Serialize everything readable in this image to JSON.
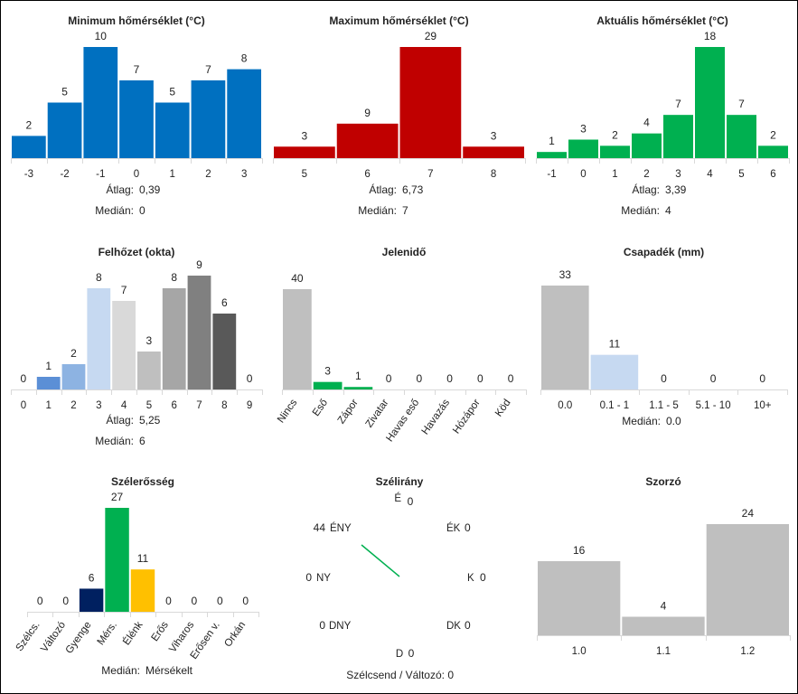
{
  "chart_data": [
    {
      "id": "min",
      "type": "bar",
      "title": "Minimum hőmérséklet (°C)",
      "categories": [
        "-3",
        "-2",
        "-1",
        "0",
        "1",
        "2",
        "3"
      ],
      "values": [
        2,
        5,
        10,
        7,
        5,
        7,
        8
      ],
      "colors": [
        "#0070c0",
        "#0070c0",
        "#0070c0",
        "#0070c0",
        "#0070c0",
        "#0070c0",
        "#0070c0"
      ],
      "stats": [
        {
          "label": "Átlag:",
          "value": "0,39"
        },
        {
          "label": "Medián:",
          "value": "0"
        }
      ]
    },
    {
      "id": "max",
      "type": "bar",
      "title": "Maximum hőmérséklet (°C)",
      "categories": [
        "5",
        "6",
        "7",
        "8"
      ],
      "values": [
        3,
        9,
        29,
        3
      ],
      "colors": [
        "#c00000",
        "#c00000",
        "#c00000",
        "#c00000"
      ],
      "stats": [
        {
          "label": "Átlag:",
          "value": "6,73"
        },
        {
          "label": "Medián:",
          "value": "7"
        }
      ]
    },
    {
      "id": "akt",
      "type": "bar",
      "title": "Aktuális hőmérséklet (°C)",
      "categories": [
        "-1",
        "0",
        "1",
        "2",
        "3",
        "4",
        "5",
        "6"
      ],
      "values": [
        1,
        3,
        2,
        4,
        7,
        18,
        7,
        2
      ],
      "colors": [
        "#00b050",
        "#00b050",
        "#00b050",
        "#00b050",
        "#00b050",
        "#00b050",
        "#00b050",
        "#00b050"
      ],
      "stats": [
        {
          "label": "Átlag:",
          "value": "3,39"
        },
        {
          "label": "Medián:",
          "value": "4"
        }
      ]
    },
    {
      "id": "felho",
      "type": "bar",
      "title": "Felhőzet (okta)",
      "categories": [
        "0",
        "1",
        "2",
        "3",
        "4",
        "5",
        "6",
        "7",
        "8",
        "9"
      ],
      "values": [
        0,
        1,
        2,
        8,
        7,
        3,
        8,
        9,
        6,
        0
      ],
      "colors": [
        "#cccccc",
        "#5b8fd6",
        "#8db3e2",
        "#c6d9f1",
        "#d9d9d9",
        "#bfbfbf",
        "#a6a6a6",
        "#808080",
        "#595959",
        "#404040"
      ],
      "stats": [
        {
          "label": "Átlag:",
          "value": "5,25"
        },
        {
          "label": "Medián:",
          "value": "6"
        }
      ]
    },
    {
      "id": "jelen",
      "type": "bar",
      "title": "Jelenidő",
      "categories": [
        "Nincs",
        "Eső",
        "Zápor",
        "Zivatar",
        "Havas eső",
        "Havazás",
        "Hózápor",
        "Köd"
      ],
      "values": [
        40,
        3,
        1,
        0,
        0,
        0,
        0,
        0
      ],
      "colors": [
        "#bfbfbf",
        "#00b050",
        "#00b050",
        "#7f7f7f",
        "#7f7f7f",
        "#7f7f7f",
        "#7f7f7f",
        "#7f7f7f"
      ],
      "stats": []
    },
    {
      "id": "csap",
      "type": "bar",
      "title": "Csapadék (mm)",
      "categories": [
        "0.0",
        "0.1 - 1",
        "1.1 - 5",
        "5.1 - 10",
        "10+"
      ],
      "values": [
        33,
        11,
        0,
        0,
        0
      ],
      "colors": [
        "#bfbfbf",
        "#c6d9f1",
        "#8db3e2",
        "#5b8fd6",
        "#0070c0"
      ],
      "stats": [
        {
          "label": "Medián:",
          "value": "0.0"
        }
      ]
    },
    {
      "id": "szel",
      "type": "bar",
      "title": "Szélerősség",
      "categories": [
        "Szélcs.",
        "Változó",
        "Gyenge",
        "Mérs.",
        "Élénk",
        "Erős",
        "Viharos",
        "Erősen v.",
        "Orkán"
      ],
      "values": [
        0,
        0,
        6,
        27,
        11,
        0,
        0,
        0,
        0
      ],
      "colors": [
        "#7f7f7f",
        "#7f7f7f",
        "#002060",
        "#00b050",
        "#ffc000",
        "#ff0000",
        "#c00000",
        "#7030a0",
        "#000000"
      ],
      "stats": [
        {
          "label": "Medián:",
          "value": "Mérsékelt"
        }
      ]
    },
    {
      "id": "irany",
      "type": "wind-rose",
      "title": "Szélirány",
      "directions": [
        {
          "dir": "É",
          "count": 0
        },
        {
          "dir": "ÉK",
          "count": 0
        },
        {
          "dir": "K",
          "count": 0
        },
        {
          "dir": "DK",
          "count": 0
        },
        {
          "dir": "D",
          "count": 0
        },
        {
          "dir": "DNY",
          "count": 0
        },
        {
          "dir": "NY",
          "count": 0
        },
        {
          "dir": "ÉNY",
          "count": 44
        }
      ],
      "calm_label": "Szélcsend / Változó:",
      "calm_value": "0",
      "color": "#00b050"
    },
    {
      "id": "szorzo",
      "type": "bar",
      "title": "Szorzó",
      "categories": [
        "1.0",
        "1.1",
        "1.2"
      ],
      "values": [
        16,
        4,
        24
      ],
      "colors": [
        "#bfbfbf",
        "#bfbfbf",
        "#bfbfbf"
      ],
      "stats": []
    }
  ]
}
